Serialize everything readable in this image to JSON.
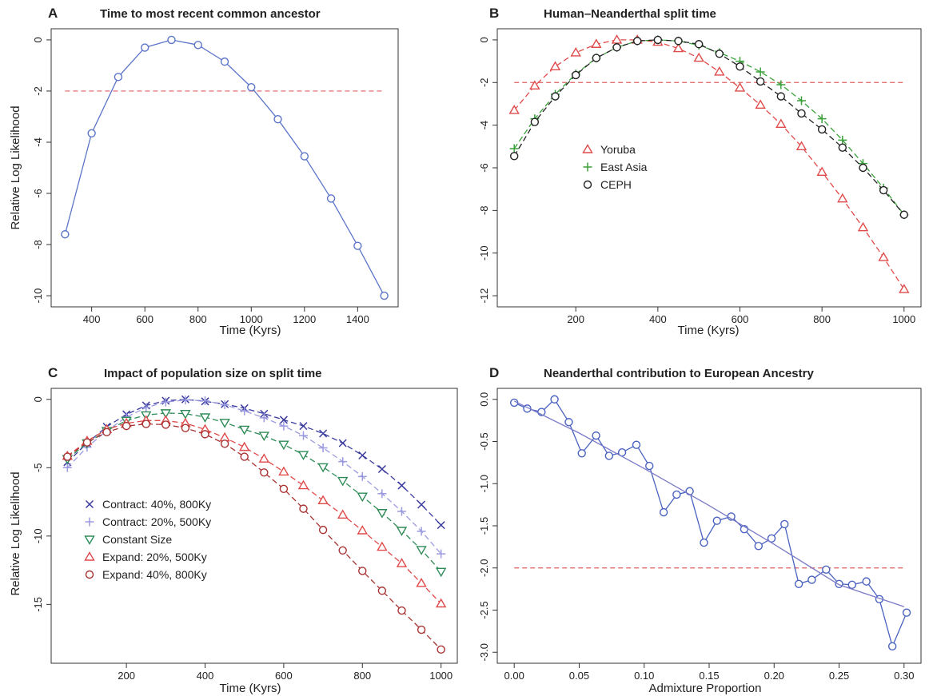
{
  "figure": {
    "panels": [
      {
        "letter": "A",
        "title": "Time to most recent common ancestor",
        "xlabel": "Time (Kyrs)",
        "ylabel": "Relative Log Likelihood",
        "xlim": [
          300,
          1500
        ],
        "ylim": [
          -10,
          0
        ],
        "xticks": [
          400,
          600,
          800,
          1000,
          1200,
          1400
        ],
        "yticks": [
          0,
          -2,
          -4,
          -6,
          -8,
          -10
        ]
      },
      {
        "letter": "B",
        "title": "Human–Neanderthal split time",
        "xlabel": "Time (Kyrs)",
        "ylabel": "",
        "xlim": [
          50,
          1000
        ],
        "ylim": [
          -12,
          0
        ],
        "xticks": [
          200,
          400,
          600,
          800,
          1000
        ],
        "yticks": [
          0,
          -2,
          -4,
          -6,
          -8,
          -10,
          -12
        ]
      },
      {
        "letter": "C",
        "title": "Impact of population size on split time",
        "xlabel": "Time (Kyrs)",
        "ylabel": "Relative Log Likelihood",
        "xlim": [
          50,
          1000
        ],
        "ylim": [
          -18.5,
          0
        ],
        "xticks": [
          200,
          400,
          600,
          800,
          1000
        ],
        "yticks": [
          0,
          -5,
          -10,
          -15
        ]
      },
      {
        "letter": "D",
        "title": "Neanderthal contribution to European Ancestry",
        "xlabel": "Admixture Proportion",
        "ylabel": "",
        "xlim": [
          0,
          0.3
        ],
        "ylim": [
          -3,
          0
        ],
        "xticks": [
          0.0,
          0.05,
          0.1,
          0.15,
          0.2,
          0.25,
          0.3
        ],
        "yticks": [
          0.0,
          -0.5,
          -1.0,
          -1.5,
          -2.0,
          -2.5,
          -3.0
        ]
      }
    ]
  },
  "chart_data": [
    {
      "type": "line",
      "panel": "A",
      "title": "Time to most recent common ancestor",
      "xlabel": "Time (Kyrs)",
      "ylabel": "Relative Log Likelihood",
      "xlim": [
        300,
        1500
      ],
      "ylim": [
        -10,
        0
      ],
      "reference_line": -2,
      "series": [
        {
          "color": "#5c75c8",
          "marker": "circle",
          "x": [
            300,
            400,
            500,
            600,
            700,
            800,
            900,
            1000,
            1100,
            1200,
            1300,
            1400,
            1500
          ],
          "y": [
            -7.6,
            -3.65,
            -1.45,
            -0.3,
            0,
            -0.2,
            -0.85,
            -1.85,
            -3.1,
            -4.55,
            -6.2,
            -8.05,
            -10.0
          ]
        }
      ]
    },
    {
      "type": "line",
      "panel": "B",
      "title": "Human–Neanderthal split time",
      "xlabel": "Time (Kyrs)",
      "xlim": [
        50,
        1000
      ],
      "ylim": [
        -12,
        0
      ],
      "reference_line": -2,
      "legend": "center-left",
      "series": [
        {
          "name": "Yoruba",
          "color": "#e04a4a",
          "marker": "triangle-up",
          "x": [
            50,
            100,
            150,
            200,
            250,
            300,
            350,
            400,
            450,
            500,
            550,
            600,
            650,
            700,
            750,
            800,
            850,
            900,
            950,
            1000
          ],
          "y": [
            -3.3,
            -2.15,
            -1.25,
            -0.6,
            -0.2,
            0,
            0,
            -0.1,
            -0.4,
            -0.85,
            -1.5,
            -2.25,
            -3.05,
            -3.95,
            -5.0,
            -6.2,
            -7.45,
            -8.8,
            -10.2,
            -11.7
          ]
        },
        {
          "name": "East Asia",
          "color": "#3aa13a",
          "marker": "plus",
          "x": [
            50,
            100,
            150,
            200,
            250,
            300,
            350,
            400,
            450,
            500,
            550,
            600,
            650,
            700,
            750,
            800,
            850,
            900,
            950,
            1000
          ],
          "y": [
            -5.1,
            -3.7,
            -2.55,
            -1.6,
            -0.85,
            -0.35,
            -0.05,
            0,
            -0.05,
            -0.25,
            -0.6,
            -1.0,
            -1.5,
            -2.1,
            -2.85,
            -3.7,
            -4.7,
            -5.8,
            -6.95,
            -8.2
          ]
        },
        {
          "name": "CEPH",
          "color": "#222222",
          "marker": "circle",
          "x": [
            50,
            100,
            150,
            200,
            250,
            300,
            350,
            400,
            450,
            500,
            550,
            600,
            650,
            700,
            750,
            800,
            850,
            900,
            950,
            1000
          ],
          "y": [
            -5.45,
            -3.85,
            -2.65,
            -1.65,
            -0.85,
            -0.35,
            -0.05,
            0,
            -0.05,
            -0.2,
            -0.65,
            -1.25,
            -1.95,
            -2.65,
            -3.45,
            -4.2,
            -5.05,
            -6.0,
            -7.05,
            -8.2
          ]
        }
      ]
    },
    {
      "type": "line",
      "panel": "C",
      "title": "Impact of population size on split time",
      "xlabel": "Time (Kyrs)",
      "ylabel": "Relative Log Likelihood",
      "xlim": [
        50,
        1000
      ],
      "ylim": [
        -18.5,
        0
      ],
      "legend": "bottom-left",
      "series": [
        {
          "name": "Contract: 40%, 800Ky",
          "color": "#3a3a9e",
          "marker": "x",
          "x": [
            50,
            100,
            150,
            200,
            250,
            300,
            350,
            400,
            450,
            500,
            550,
            600,
            650,
            700,
            750,
            800,
            850,
            900,
            950,
            1000
          ],
          "y": [
            -4.6,
            -3.2,
            -2.0,
            -1.1,
            -0.45,
            -0.1,
            0,
            -0.15,
            -0.35,
            -0.65,
            -1.05,
            -1.5,
            -1.95,
            -2.5,
            -3.2,
            -4.1,
            -5.1,
            -6.3,
            -7.7,
            -9.2
          ]
        },
        {
          "name": "Contract: 20%, 500Ky",
          "color": "#9a9ae0",
          "marker": "plus",
          "x": [
            50,
            100,
            150,
            200,
            250,
            300,
            350,
            400,
            450,
            500,
            550,
            600,
            650,
            700,
            750,
            800,
            850,
            900,
            950,
            1000
          ],
          "y": [
            -5.0,
            -3.5,
            -2.3,
            -1.3,
            -0.6,
            -0.2,
            -0.05,
            -0.1,
            -0.4,
            -0.85,
            -1.35,
            -1.95,
            -2.65,
            -3.55,
            -4.55,
            -5.65,
            -6.9,
            -8.2,
            -9.65,
            -11.3
          ]
        },
        {
          "name": "Constant Size",
          "color": "#2e8b57",
          "marker": "triangle-down",
          "x": [
            50,
            100,
            150,
            200,
            250,
            300,
            350,
            400,
            450,
            500,
            550,
            600,
            650,
            700,
            750,
            800,
            850,
            900,
            950,
            1000
          ],
          "y": [
            -4.35,
            -3.2,
            -2.3,
            -1.55,
            -1.15,
            -1.0,
            -1.05,
            -1.3,
            -1.7,
            -2.2,
            -2.65,
            -3.3,
            -4.05,
            -4.95,
            -5.95,
            -7.1,
            -8.3,
            -9.6,
            -11.0,
            -12.6
          ]
        },
        {
          "name": "Expand: 20%, 500Ky",
          "color": "#e04a4a",
          "marker": "triangle-up",
          "x": [
            50,
            100,
            150,
            200,
            250,
            300,
            350,
            400,
            450,
            500,
            550,
            600,
            650,
            700,
            750,
            800,
            850,
            900,
            950,
            1000
          ],
          "y": [
            -4.15,
            -3.05,
            -2.2,
            -1.75,
            -1.55,
            -1.55,
            -1.75,
            -2.2,
            -2.8,
            -3.5,
            -4.35,
            -5.3,
            -6.3,
            -7.4,
            -8.45,
            -9.6,
            -10.8,
            -12.0,
            -13.45,
            -14.95
          ]
        },
        {
          "name": "Expand: 40%, 800Ky",
          "color": "#a83232",
          "marker": "circle",
          "x": [
            50,
            100,
            150,
            200,
            250,
            300,
            350,
            400,
            450,
            500,
            550,
            600,
            650,
            700,
            750,
            800,
            850,
            900,
            950,
            1000
          ],
          "y": [
            -4.2,
            -3.15,
            -2.4,
            -1.95,
            -1.8,
            -1.85,
            -2.1,
            -2.55,
            -3.25,
            -4.2,
            -5.35,
            -6.55,
            -8.0,
            -9.55,
            -11.05,
            -12.55,
            -14.0,
            -15.45,
            -16.85,
            -18.3
          ]
        }
      ]
    },
    {
      "type": "line",
      "panel": "D",
      "title": "Neanderthal contribution to European Ancestry",
      "xlabel": "Admixture Proportion",
      "xlim": [
        0,
        0.3
      ],
      "ylim": [
        -3,
        0
      ],
      "reference_line": -2,
      "series": [
        {
          "color": "#4a62c0",
          "marker": "circle",
          "x": [
            0.0,
            0.01,
            0.021,
            0.031,
            0.042,
            0.052,
            0.063,
            0.073,
            0.083,
            0.094,
            0.104,
            0.115,
            0.125,
            0.135,
            0.146,
            0.156,
            0.167,
            0.177,
            0.188,
            0.198,
            0.208,
            0.219,
            0.229,
            0.24,
            0.25,
            0.26,
            0.271,
            0.281,
            0.291,
            0.302
          ],
          "y": [
            -0.04,
            -0.11,
            -0.15,
            0.0,
            -0.27,
            -0.64,
            -0.43,
            -0.67,
            -0.63,
            -0.54,
            -0.79,
            -1.34,
            -1.13,
            -1.09,
            -1.7,
            -1.44,
            -1.39,
            -1.54,
            -1.74,
            -1.65,
            -1.48,
            -2.19,
            -2.14,
            -2.02,
            -2.19,
            -2.2,
            -2.16,
            -2.37,
            -2.93,
            -2.53
          ]
        },
        {
          "color": "#7a7ac8",
          "marker": "none",
          "x": [
            0.0,
            0.05,
            0.1,
            0.15,
            0.2,
            0.25,
            0.3
          ],
          "y": [
            -0.02,
            -0.4,
            -0.82,
            -1.26,
            -1.72,
            -2.2,
            -2.46
          ]
        }
      ]
    }
  ]
}
